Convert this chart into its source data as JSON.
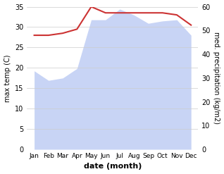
{
  "months": [
    "Jan",
    "Feb",
    "Mar",
    "Apr",
    "May",
    "Jun",
    "Jul",
    "Aug",
    "Sep",
    "Oct",
    "Nov",
    "Dec"
  ],
  "month_positions": [
    0,
    1,
    2,
    3,
    4,
    5,
    6,
    7,
    8,
    9,
    10,
    11
  ],
  "max_temp": [
    28.0,
    28.0,
    28.5,
    29.5,
    35.0,
    33.5,
    33.5,
    33.5,
    33.5,
    33.5,
    33.0,
    30.5
  ],
  "precipitation": [
    33.0,
    29.0,
    30.0,
    34.0,
    54.5,
    54.5,
    59.0,
    56.5,
    53.0,
    54.0,
    54.5,
    48.0
  ],
  "temp_color": "#cc3333",
  "precip_fill_color": "#c8d4f5",
  "temp_ylim": [
    0,
    35
  ],
  "precip_ylim": [
    0,
    60
  ],
  "temp_yticks": [
    0,
    5,
    10,
    15,
    20,
    25,
    30,
    35
  ],
  "precip_yticks": [
    0,
    10,
    20,
    30,
    40,
    50,
    60
  ],
  "xlabel": "date (month)",
  "ylabel_left": "max temp (C)",
  "ylabel_right": "med. precipitation (kg/m2)",
  "background_color": "#ffffff",
  "grid_color": "#cccccc",
  "temp_linewidth": 1.5,
  "label_fontsize": 7,
  "xlabel_fontsize": 8
}
